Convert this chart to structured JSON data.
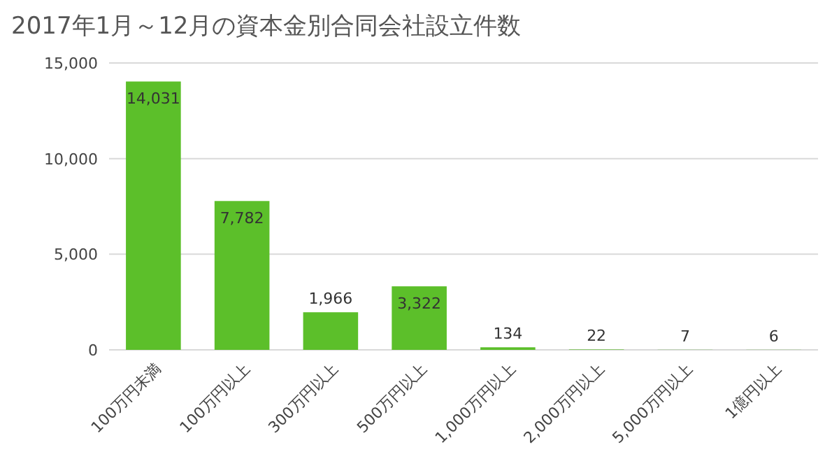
{
  "chart_data": {
    "type": "bar",
    "title": "2017年1月～12月の資本金別合同会社設立件数",
    "categories": [
      "100万円未満",
      "100万円以上",
      "300万円以上",
      "500万円以上",
      "1,000万円以上",
      "2,000万円以上",
      "5,000万円以上",
      "1億円以上"
    ],
    "values": [
      14031,
      7782,
      1966,
      3322,
      134,
      22,
      7,
      6
    ],
    "value_labels": [
      "14,031",
      "7,782",
      "1,966",
      "3,322",
      "134",
      "22",
      "7",
      "6"
    ],
    "color": "#5cbf2a",
    "ylim": [
      0,
      15000
    ],
    "yticks": [
      {
        "value": 0,
        "label": "0"
      },
      {
        "value": 5000,
        "label": "5,000"
      },
      {
        "value": 10000,
        "label": "10,000"
      },
      {
        "value": 15000,
        "label": "15,000"
      }
    ],
    "grid": "y"
  }
}
